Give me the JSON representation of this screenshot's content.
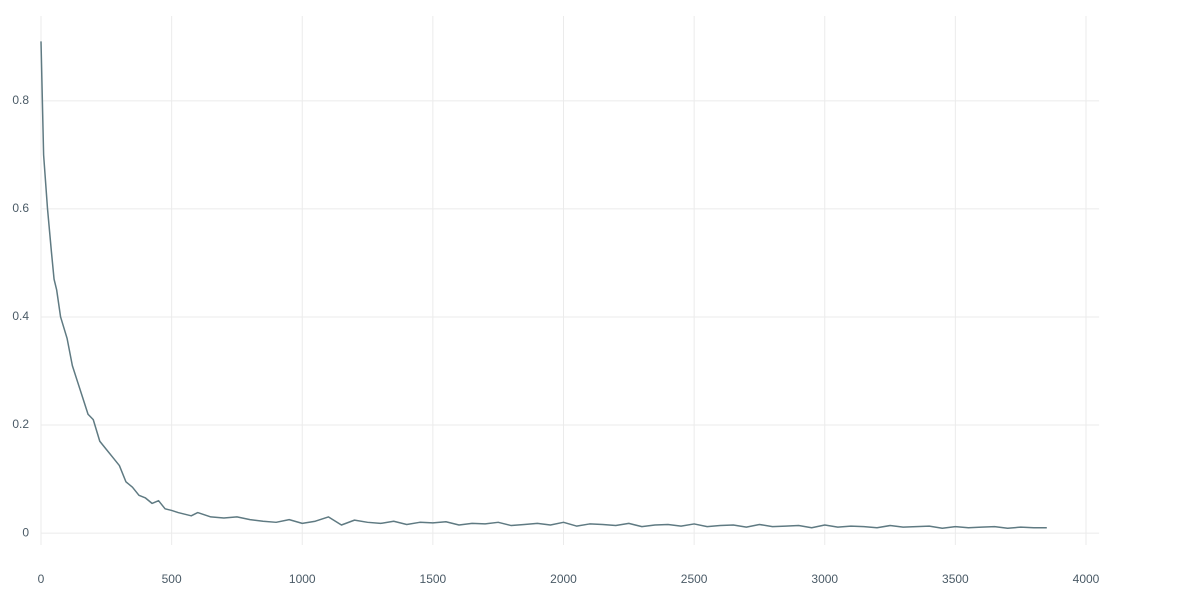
{
  "chart_data": {
    "type": "line",
    "x": [
      0,
      10,
      25,
      40,
      50,
      60,
      75,
      100,
      120,
      140,
      160,
      180,
      200,
      225,
      250,
      275,
      300,
      325,
      350,
      375,
      400,
      425,
      450,
      475,
      500,
      525,
      550,
      575,
      600,
      650,
      700,
      750,
      800,
      850,
      900,
      950,
      1000,
      1050,
      1100,
      1150,
      1200,
      1250,
      1300,
      1350,
      1400,
      1450,
      1500,
      1550,
      1600,
      1650,
      1700,
      1750,
      1800,
      1850,
      1900,
      1950,
      2000,
      2050,
      2100,
      2150,
      2200,
      2250,
      2300,
      2350,
      2400,
      2450,
      2500,
      2550,
      2600,
      2650,
      2700,
      2750,
      2800,
      2850,
      2900,
      2950,
      3000,
      3050,
      3100,
      3150,
      3200,
      3250,
      3300,
      3350,
      3400,
      3450,
      3500,
      3550,
      3600,
      3650,
      3700,
      3750,
      3800,
      3850
    ],
    "series": [
      {
        "color": "#5f7a82",
        "values": [
          0.91,
          0.7,
          0.6,
          0.52,
          0.47,
          0.45,
          0.4,
          0.36,
          0.31,
          0.28,
          0.25,
          0.22,
          0.21,
          0.17,
          0.155,
          0.14,
          0.125,
          0.095,
          0.085,
          0.07,
          0.065,
          0.055,
          0.06,
          0.045,
          0.042,
          0.038,
          0.035,
          0.032,
          0.038,
          0.03,
          0.028,
          0.03,
          0.025,
          0.022,
          0.02,
          0.025,
          0.018,
          0.022,
          0.03,
          0.015,
          0.024,
          0.02,
          0.018,
          0.022,
          0.016,
          0.02,
          0.019,
          0.021,
          0.015,
          0.018,
          0.017,
          0.02,
          0.014,
          0.016,
          0.018,
          0.015,
          0.02,
          0.013,
          0.017,
          0.016,
          0.014,
          0.018,
          0.012,
          0.015,
          0.016,
          0.013,
          0.017,
          0.012,
          0.014,
          0.015,
          0.011,
          0.016,
          0.012,
          0.013,
          0.014,
          0.01,
          0.015,
          0.011,
          0.013,
          0.012,
          0.01,
          0.014,
          0.011,
          0.012,
          0.013,
          0.009,
          0.012,
          0.01,
          0.011,
          0.012,
          0.009,
          0.011,
          0.01,
          0.01
        ]
      }
    ],
    "xlim": [
      0,
      4050
    ],
    "ylim": [
      -0.022,
      0.957
    ],
    "xticks": [
      0,
      500,
      1000,
      1500,
      2000,
      2500,
      3000,
      3500,
      4000
    ],
    "yticks": [
      0,
      0.2,
      0.4,
      0.6,
      0.8
    ],
    "grid": true
  }
}
